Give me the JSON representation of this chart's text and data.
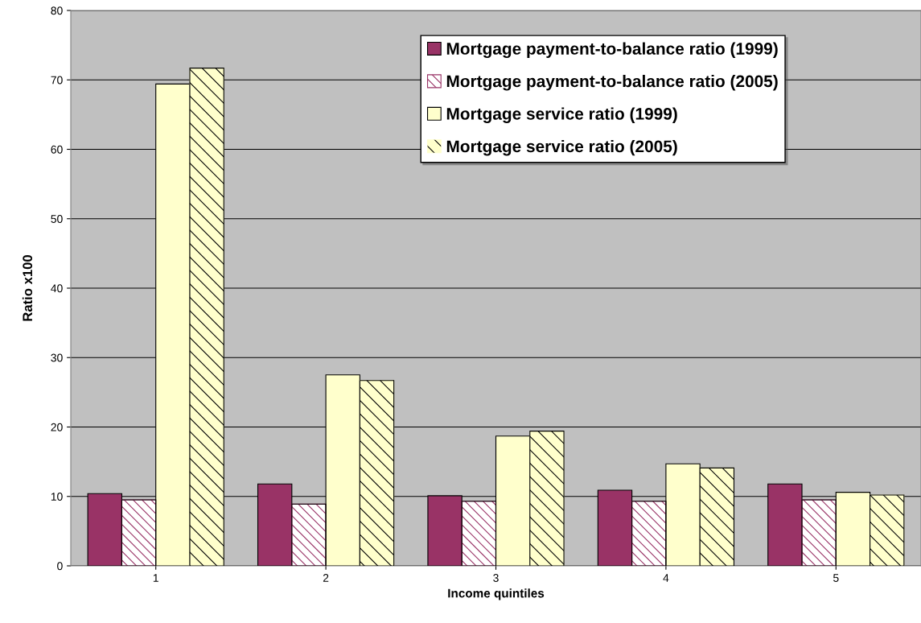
{
  "chart_data": {
    "type": "bar",
    "xlabel": "Income quintiles",
    "ylabel": "Ratio x100",
    "categories": [
      "1",
      "2",
      "3",
      "4",
      "5"
    ],
    "series": [
      {
        "name": "Mortgage payment-to-balance ratio (1999)",
        "color": "#993366",
        "values": [
          10.4,
          11.8,
          10.1,
          10.9,
          11.8
        ]
      },
      {
        "name": "Mortgage payment-to-balance ratio (2005)",
        "color": "#993366",
        "values": [
          9.5,
          8.9,
          9.3,
          9.3,
          9.5
        ]
      },
      {
        "name": "Mortgage service ratio (1999)",
        "color": "#ffffcc",
        "values": [
          69.4,
          27.5,
          18.7,
          14.7,
          10.6
        ]
      },
      {
        "name": "Mortgage service ratio (2005)",
        "color": "#ffffcc",
        "values": [
          71.7,
          26.7,
          19.4,
          14.1,
          10.2
        ]
      }
    ],
    "ylim": [
      0,
      80
    ],
    "yticks": [
      0,
      10,
      20,
      30,
      40,
      50,
      60,
      70,
      80
    ],
    "grid": "y",
    "legend": "top right"
  }
}
